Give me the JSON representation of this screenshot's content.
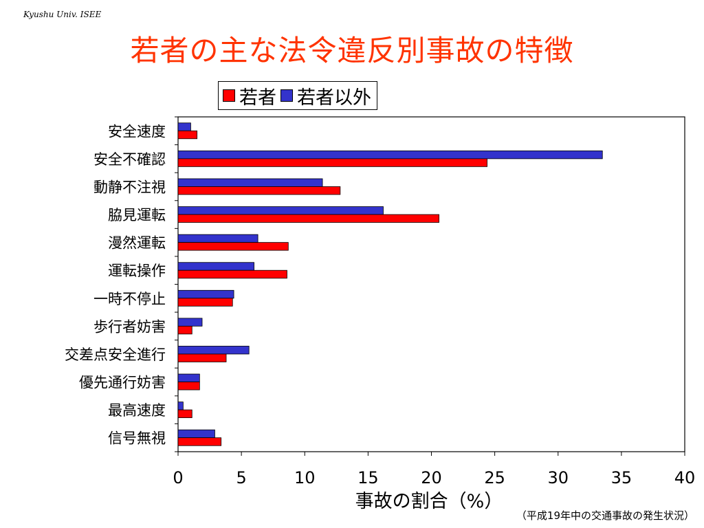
{
  "header": {
    "organization": "Kyushu Univ. ISEE"
  },
  "chart_data": {
    "type": "bar",
    "orientation": "horizontal",
    "title": "若者の主な法令違反別事故の特徴",
    "xlabel": "事故の割合（%）",
    "ylabel": "",
    "xlim": [
      0,
      40
    ],
    "xticks": [
      "0",
      "5",
      "10",
      "15",
      "20",
      "25",
      "30",
      "35",
      "40"
    ],
    "grid": false,
    "legend_position": "top-center",
    "categories": [
      "安全速度",
      "安全不確認",
      "動静不注視",
      "脇見運転",
      "漫然運転",
      "運転操作",
      "一時不停止",
      "歩行者妨害",
      "交差点安全進行",
      "優先通行妨害",
      "最高速度",
      "信号無視"
    ],
    "series": [
      {
        "name": "若者以外",
        "color": "#3333cc",
        "values": [
          1.0,
          33.5,
          11.4,
          16.2,
          6.3,
          6.0,
          4.4,
          1.9,
          5.6,
          1.7,
          0.4,
          2.9
        ]
      },
      {
        "name": "若者",
        "color": "#ff0000",
        "values": [
          1.5,
          24.4,
          12.8,
          20.6,
          8.7,
          8.6,
          4.3,
          1.1,
          3.8,
          1.7,
          1.1,
          3.4
        ]
      }
    ],
    "note": "（平成19年中の交通事故の発生状況）"
  }
}
